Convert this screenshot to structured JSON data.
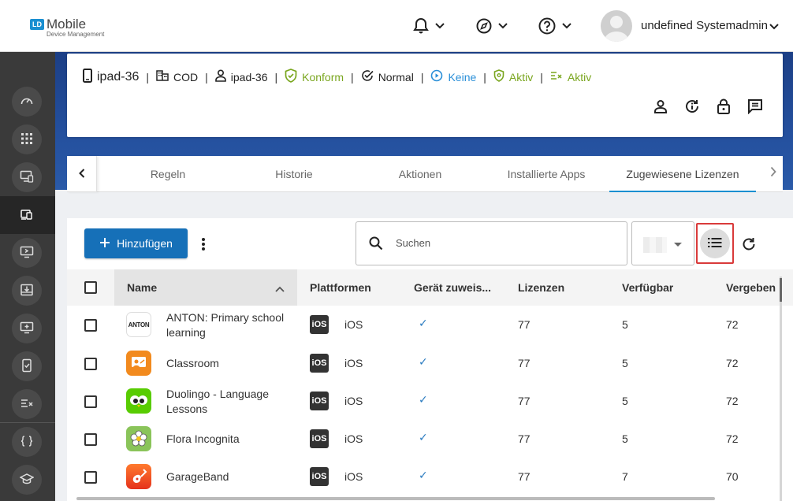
{
  "header": {
    "logo_badge": "LD",
    "logo_title": "Mobile",
    "logo_subtitle": "Device Management",
    "user_name": "undefined Systemadministrator"
  },
  "device": {
    "name": "ipad-36",
    "org": "COD",
    "user": "ipad-36",
    "compliance": "Konform",
    "mode": "Normal",
    "playback": "Keine",
    "shield": "Aktiv",
    "rules": "Aktiv"
  },
  "tabs": [
    "Regeln",
    "Historie",
    "Aktionen",
    "Installierte Apps",
    "Zugewiesene Lizenzen"
  ],
  "toolbar": {
    "add_label": "Hinzufügen",
    "search_placeholder": "Suchen"
  },
  "table": {
    "columns": [
      "Name",
      "Plattformen",
      "Gerät zuweis...",
      "Lizenzen",
      "Verfügbar",
      "Vergeben"
    ],
    "rows": [
      {
        "name": "ANTON: Primary school learning",
        "platform": "iOS",
        "assign": "✓",
        "licenses": "77",
        "available": "5",
        "assigned": "72"
      },
      {
        "name": "Classroom",
        "platform": "iOS",
        "assign": "✓",
        "licenses": "77",
        "available": "5",
        "assigned": "72"
      },
      {
        "name": "Duolingo - Language Lessons",
        "platform": "iOS",
        "assign": "✓",
        "licenses": "77",
        "available": "5",
        "assigned": "72"
      },
      {
        "name": "Flora Incognita",
        "platform": "iOS",
        "assign": "✓",
        "licenses": "77",
        "available": "5",
        "assigned": "72"
      },
      {
        "name": "GarageBand",
        "platform": "iOS",
        "assign": "✓",
        "licenses": "77",
        "available": "7",
        "assigned": "70"
      }
    ],
    "ios_badge": "iOS",
    "anton_logo_text": "ANTON"
  },
  "colors": {
    "accent": "#1670b8",
    "green": "#7aa61f",
    "link_blue": "#2a8fd8",
    "highlight": "#d93a3a"
  }
}
